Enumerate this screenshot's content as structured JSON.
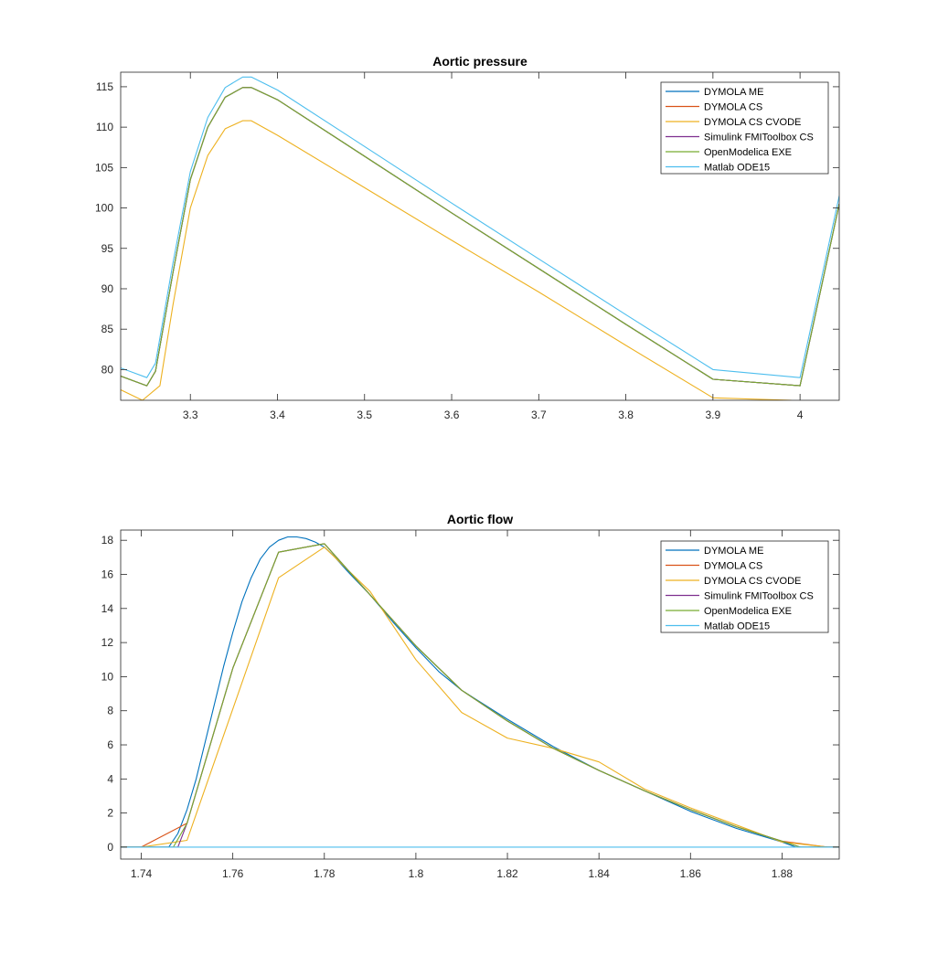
{
  "chart_data": [
    {
      "type": "line",
      "title": "Aortic pressure",
      "xlabel": "",
      "ylabel": "",
      "xlim": [
        3.22,
        4.045
      ],
      "ylim": [
        76.2,
        116.8
      ],
      "x_ticks": [
        3.3,
        3.4,
        3.5,
        3.6,
        3.7,
        3.8,
        3.9,
        4
      ],
      "x_tick_labels": [
        "3.3",
        "3.4",
        "3.5",
        "3.6",
        "3.7",
        "3.8",
        "3.9",
        "4"
      ],
      "y_ticks": [
        80,
        85,
        90,
        95,
        100,
        105,
        110,
        115
      ],
      "y_tick_labels": [
        "80",
        "85",
        "90",
        "95",
        "100",
        "105",
        "110",
        "115"
      ],
      "grid": false,
      "legend_position": "top-right",
      "series": [
        {
          "name": "DYMOLA ME",
          "color": "#0072BD",
          "x": [
            3.22,
            3.25,
            3.26,
            3.28,
            3.3,
            3.32,
            3.34,
            3.36,
            3.37,
            3.4,
            3.5,
            3.6,
            3.7,
            3.8,
            3.9,
            4.0,
            4.02,
            4.045
          ],
          "y": [
            79.2,
            78.0,
            79.8,
            92.0,
            103.5,
            110.0,
            113.7,
            114.9,
            114.9,
            113.4,
            106.4,
            99.4,
            92.5,
            85.6,
            78.8,
            78.0,
            88.0,
            100.5
          ]
        },
        {
          "name": "DYMOLA CS",
          "color": "#D95319",
          "x": [
            3.22,
            3.25,
            3.26,
            3.28,
            3.3,
            3.32,
            3.34,
            3.36,
            3.37,
            3.4,
            3.5,
            3.6,
            3.7,
            3.8,
            3.9,
            4.0,
            4.02,
            4.045
          ],
          "y": [
            79.2,
            78.0,
            79.8,
            92.0,
            103.5,
            110.0,
            113.7,
            114.9,
            114.9,
            113.4,
            106.4,
            99.4,
            92.5,
            85.6,
            78.8,
            78.0,
            88.0,
            100.5
          ]
        },
        {
          "name": "DYMOLA CS CVODE",
          "color": "#EDB120",
          "x": [
            3.22,
            3.245,
            3.265,
            3.28,
            3.3,
            3.32,
            3.34,
            3.36,
            3.37,
            3.4,
            3.5,
            3.6,
            3.7,
            3.8,
            3.9,
            3.99
          ],
          "y": [
            77.5,
            76.2,
            78.0,
            88.0,
            100.0,
            106.5,
            109.8,
            110.8,
            110.8,
            109.0,
            102.5,
            96.0,
            89.6,
            83.0,
            76.5,
            76.2
          ]
        },
        {
          "name": "Simulink FMIToolbox CS",
          "color": "#7E2F8E",
          "x": [
            3.22,
            3.25,
            3.26,
            3.28,
            3.3,
            3.32,
            3.34,
            3.36,
            3.37,
            3.4,
            3.5,
            3.6,
            3.7,
            3.8,
            3.9,
            4.0,
            4.02,
            4.045
          ],
          "y": [
            79.2,
            78.0,
            79.8,
            92.0,
            103.5,
            110.0,
            113.7,
            114.9,
            114.9,
            113.4,
            106.4,
            99.4,
            92.5,
            85.6,
            78.8,
            78.0,
            88.0,
            100.5
          ]
        },
        {
          "name": "OpenModelica EXE",
          "color": "#77AC30",
          "x": [
            3.22,
            3.25,
            3.26,
            3.28,
            3.3,
            3.32,
            3.34,
            3.36,
            3.37,
            3.4,
            3.5,
            3.6,
            3.7,
            3.8,
            3.9,
            4.0,
            4.02,
            4.045
          ],
          "y": [
            79.2,
            78.0,
            79.8,
            92.0,
            103.5,
            110.0,
            113.7,
            114.9,
            114.9,
            113.4,
            106.4,
            99.4,
            92.5,
            85.6,
            78.8,
            78.0,
            88.0,
            100.5
          ]
        },
        {
          "name": "Matlab ODE15",
          "color": "#4DBEEE",
          "x": [
            3.22,
            3.25,
            3.26,
            3.28,
            3.3,
            3.32,
            3.34,
            3.36,
            3.37,
            3.4,
            3.5,
            3.6,
            3.7,
            3.8,
            3.9,
            4.0,
            4.02,
            4.045
          ],
          "y": [
            80.2,
            79.0,
            80.8,
            93.2,
            104.5,
            111.2,
            114.9,
            116.2,
            116.2,
            114.6,
            107.6,
            100.6,
            93.7,
            86.8,
            80.0,
            79.0,
            89.0,
            101.5
          ]
        }
      ]
    },
    {
      "type": "line",
      "title": "Aortic flow",
      "xlabel": "",
      "ylabel": "",
      "xlim": [
        1.7355,
        1.8925
      ],
      "ylim": [
        -0.7,
        18.6
      ],
      "x_ticks": [
        1.74,
        1.76,
        1.78,
        1.8,
        1.82,
        1.84,
        1.86,
        1.88
      ],
      "x_tick_labels": [
        "1.74",
        "1.76",
        "1.78",
        "1.8",
        "1.82",
        "1.84",
        "1.86",
        "1.88"
      ],
      "y_ticks": [
        0,
        2,
        4,
        6,
        8,
        10,
        12,
        14,
        16,
        18
      ],
      "y_tick_labels": [
        "0",
        "2",
        "4",
        "6",
        "8",
        "10",
        "12",
        "14",
        "16",
        "18"
      ],
      "grid": false,
      "legend_position": "top-right",
      "series": [
        {
          "name": "DYMOLA ME",
          "color": "#0072BD",
          "x": [
            1.7355,
            1.746,
            1.748,
            1.75,
            1.752,
            1.754,
            1.756,
            1.758,
            1.76,
            1.762,
            1.764,
            1.766,
            1.768,
            1.77,
            1.772,
            1.774,
            1.776,
            1.778,
            1.78,
            1.782,
            1.785,
            1.79,
            1.795,
            1.8,
            1.805,
            1.81,
            1.82,
            1.83,
            1.84,
            1.85,
            1.86,
            1.87,
            1.88,
            1.883,
            1.8925
          ],
          "y": [
            0,
            0,
            0.8,
            2.2,
            4.0,
            6.2,
            8.4,
            10.6,
            12.6,
            14.4,
            15.8,
            16.9,
            17.6,
            18.0,
            18.2,
            18.2,
            18.1,
            17.9,
            17.6,
            17.1,
            16.2,
            14.8,
            13.2,
            11.7,
            10.3,
            9.2,
            7.5,
            5.9,
            4.5,
            3.3,
            2.1,
            1.1,
            0.3,
            0,
            0
          ]
        },
        {
          "name": "DYMOLA CS",
          "color": "#D95319",
          "x": [
            1.7355,
            1.74,
            1.75,
            1.76,
            1.77,
            1.78,
            1.79,
            1.8,
            1.81,
            1.82,
            1.83,
            1.84,
            1.85,
            1.86,
            1.87,
            1.88,
            1.89,
            1.8925
          ],
          "y": [
            0,
            0,
            1.4,
            10.5,
            17.3,
            17.8,
            14.8,
            11.8,
            9.2,
            7.4,
            5.8,
            4.5,
            3.3,
            2.2,
            1.2,
            0.35,
            0,
            0
          ]
        },
        {
          "name": "DYMOLA CS CVODE",
          "color": "#EDB120",
          "x": [
            1.7355,
            1.74,
            1.75,
            1.77,
            1.78,
            1.79,
            1.8,
            1.81,
            1.82,
            1.83,
            1.84,
            1.85,
            1.86,
            1.87,
            1.88,
            1.89,
            1.8925
          ],
          "y": [
            0,
            0,
            0.4,
            15.8,
            17.6,
            15.0,
            11.0,
            7.9,
            6.4,
            5.8,
            5.0,
            3.4,
            2.3,
            1.3,
            0.3,
            0,
            0
          ]
        },
        {
          "name": "Simulink FMIToolbox CS",
          "color": "#7E2F8E",
          "x": [
            1.7355,
            1.748,
            1.75,
            1.76,
            1.77,
            1.78,
            1.79,
            1.8,
            1.81,
            1.82,
            1.83,
            1.84,
            1.85,
            1.86,
            1.87,
            1.88,
            1.884,
            1.8925
          ],
          "y": [
            0,
            0,
            1.4,
            10.5,
            17.3,
            17.8,
            14.8,
            11.8,
            9.2,
            7.4,
            5.8,
            4.5,
            3.3,
            2.2,
            1.2,
            0.35,
            0,
            0
          ]
        },
        {
          "name": "OpenModelica EXE",
          "color": "#77AC30",
          "x": [
            1.7355,
            1.747,
            1.75,
            1.76,
            1.77,
            1.78,
            1.79,
            1.8,
            1.81,
            1.82,
            1.83,
            1.84,
            1.85,
            1.86,
            1.87,
            1.88,
            1.884,
            1.8925
          ],
          "y": [
            0,
            0,
            1.4,
            10.5,
            17.3,
            17.8,
            14.8,
            11.8,
            9.2,
            7.4,
            5.8,
            4.5,
            3.3,
            2.2,
            1.2,
            0.35,
            0,
            0
          ]
        },
        {
          "name": "Matlab ODE15",
          "color": "#4DBEEE",
          "x": [
            1.7355,
            1.8925
          ],
          "y": [
            0,
            0
          ]
        }
      ]
    }
  ]
}
